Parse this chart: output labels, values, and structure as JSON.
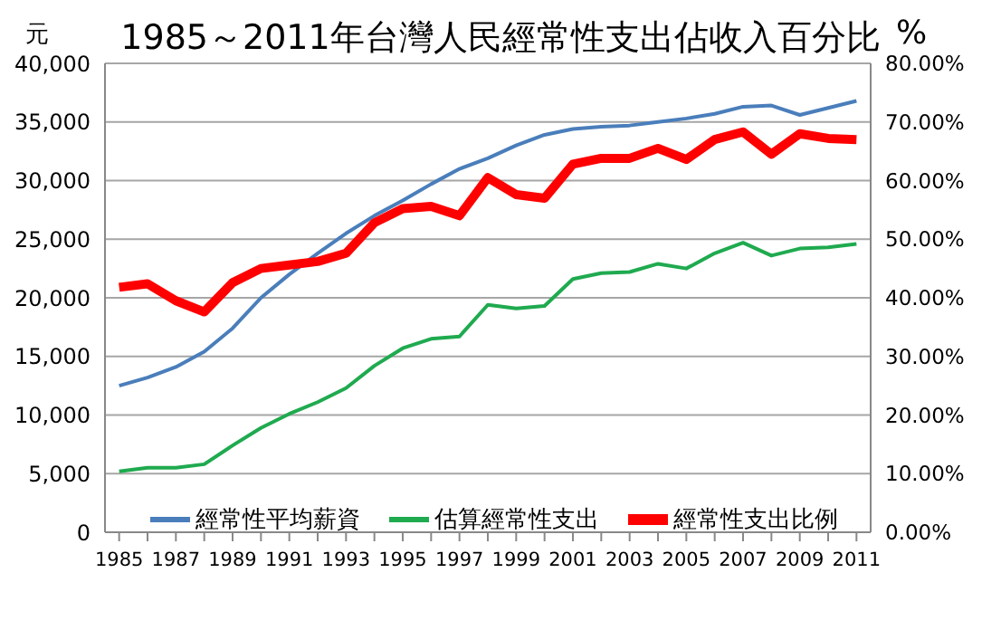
{
  "chart_data": {
    "type": "line",
    "title": "1985～2011年台灣人民經常性支出佔收入百分比",
    "ylabel": "元",
    "y2label": "%",
    "x": [
      1985,
      1986,
      1987,
      1988,
      1989,
      1990,
      1991,
      1992,
      1993,
      1994,
      1995,
      1996,
      1997,
      1998,
      1999,
      2000,
      2001,
      2002,
      2003,
      2004,
      2005,
      2006,
      2007,
      2008,
      2009,
      2010,
      2011
    ],
    "series": [
      {
        "name": "經常性平均薪資",
        "color": "#4a7ebb",
        "values": [
          12500,
          13200,
          14100,
          15400,
          17400,
          20000,
          22000,
          23800,
          25500,
          27000,
          28300,
          29700,
          31000,
          31900,
          33000,
          33900,
          34400,
          34600,
          34700,
          35000,
          35300,
          35700,
          36300,
          36400,
          35600,
          36200,
          36800
        ]
      },
      {
        "name": "估算經常性支出",
        "color": "#1faa4f",
        "values": [
          5200,
          5500,
          5500,
          5800,
          7400,
          8900,
          10100,
          11100,
          12300,
          14200,
          15700,
          16500,
          16700,
          19400,
          19100,
          19300,
          21600,
          22100,
          22200,
          22900,
          22500,
          23800,
          24700,
          23600,
          24200,
          24300,
          24600
        ]
      },
      {
        "name": "經常性支出比例",
        "color": "#ff0000",
        "axis": "y2",
        "values": [
          41.8,
          42.4,
          39.5,
          37.6,
          42.6,
          45.0,
          45.6,
          46.2,
          47.6,
          52.8,
          55.2,
          55.6,
          54.0,
          60.5,
          57.6,
          57.0,
          62.8,
          63.8,
          63.8,
          65.5,
          63.6,
          67.0,
          68.3,
          64.5,
          68.0,
          67.2,
          67.0
        ]
      }
    ],
    "xlim": [
      1984.5,
      2011.5
    ],
    "xticks": [
      1985,
      {
        "value": 1986,
        "label": null
      },
      1987,
      {
        "value": 1988,
        "label": null
      },
      1989,
      {
        "value": 1990,
        "label": null
      },
      1991,
      {
        "value": 1992,
        "label": null
      },
      1993,
      {
        "value": 1994,
        "label": null
      },
      1995,
      {
        "value": 1996,
        "label": null
      },
      1997,
      {
        "value": 1998,
        "label": null
      },
      1999,
      {
        "value": 2000,
        "label": null
      },
      2001,
      {
        "value": 2002,
        "label": null
      },
      2003,
      {
        "value": 2004,
        "label": null
      },
      2005,
      {
        "value": 2006,
        "label": null
      },
      2007,
      {
        "value": 2008,
        "label": null
      },
      2009,
      {
        "value": 2010,
        "label": null
      },
      2011
    ],
    "ylim": [
      0,
      40000
    ],
    "yticks": [
      {
        "value": 0,
        "label": "0"
      },
      {
        "value": 5000,
        "label": "5,000"
      },
      {
        "value": 10000,
        "label": "10,000"
      },
      {
        "value": 15000,
        "label": "15,000"
      },
      {
        "value": 20000,
        "label": "20,000"
      },
      {
        "value": 25000,
        "label": "25,000"
      },
      {
        "value": 30000,
        "label": "30,000"
      },
      {
        "value": 35000,
        "label": "35,000"
      },
      {
        "value": 40000,
        "label": "40,000"
      }
    ],
    "y2lim": [
      0,
      80
    ],
    "y2ticks": [
      {
        "value": 0,
        "label": "0.00%"
      },
      {
        "value": 10,
        "label": "10.00%"
      },
      {
        "value": 20,
        "label": "20.00%"
      },
      {
        "value": 30,
        "label": "30.00%"
      },
      {
        "value": 40,
        "label": "40.00%"
      },
      {
        "value": 50,
        "label": "50.00%"
      },
      {
        "value": 60,
        "label": "60.00%"
      },
      {
        "value": 70,
        "label": "70.00%"
      },
      {
        "value": 80,
        "label": "80.00%"
      }
    ],
    "grid": "y",
    "legend": "bottom",
    "marker": "none",
    "line_style": "solid"
  }
}
